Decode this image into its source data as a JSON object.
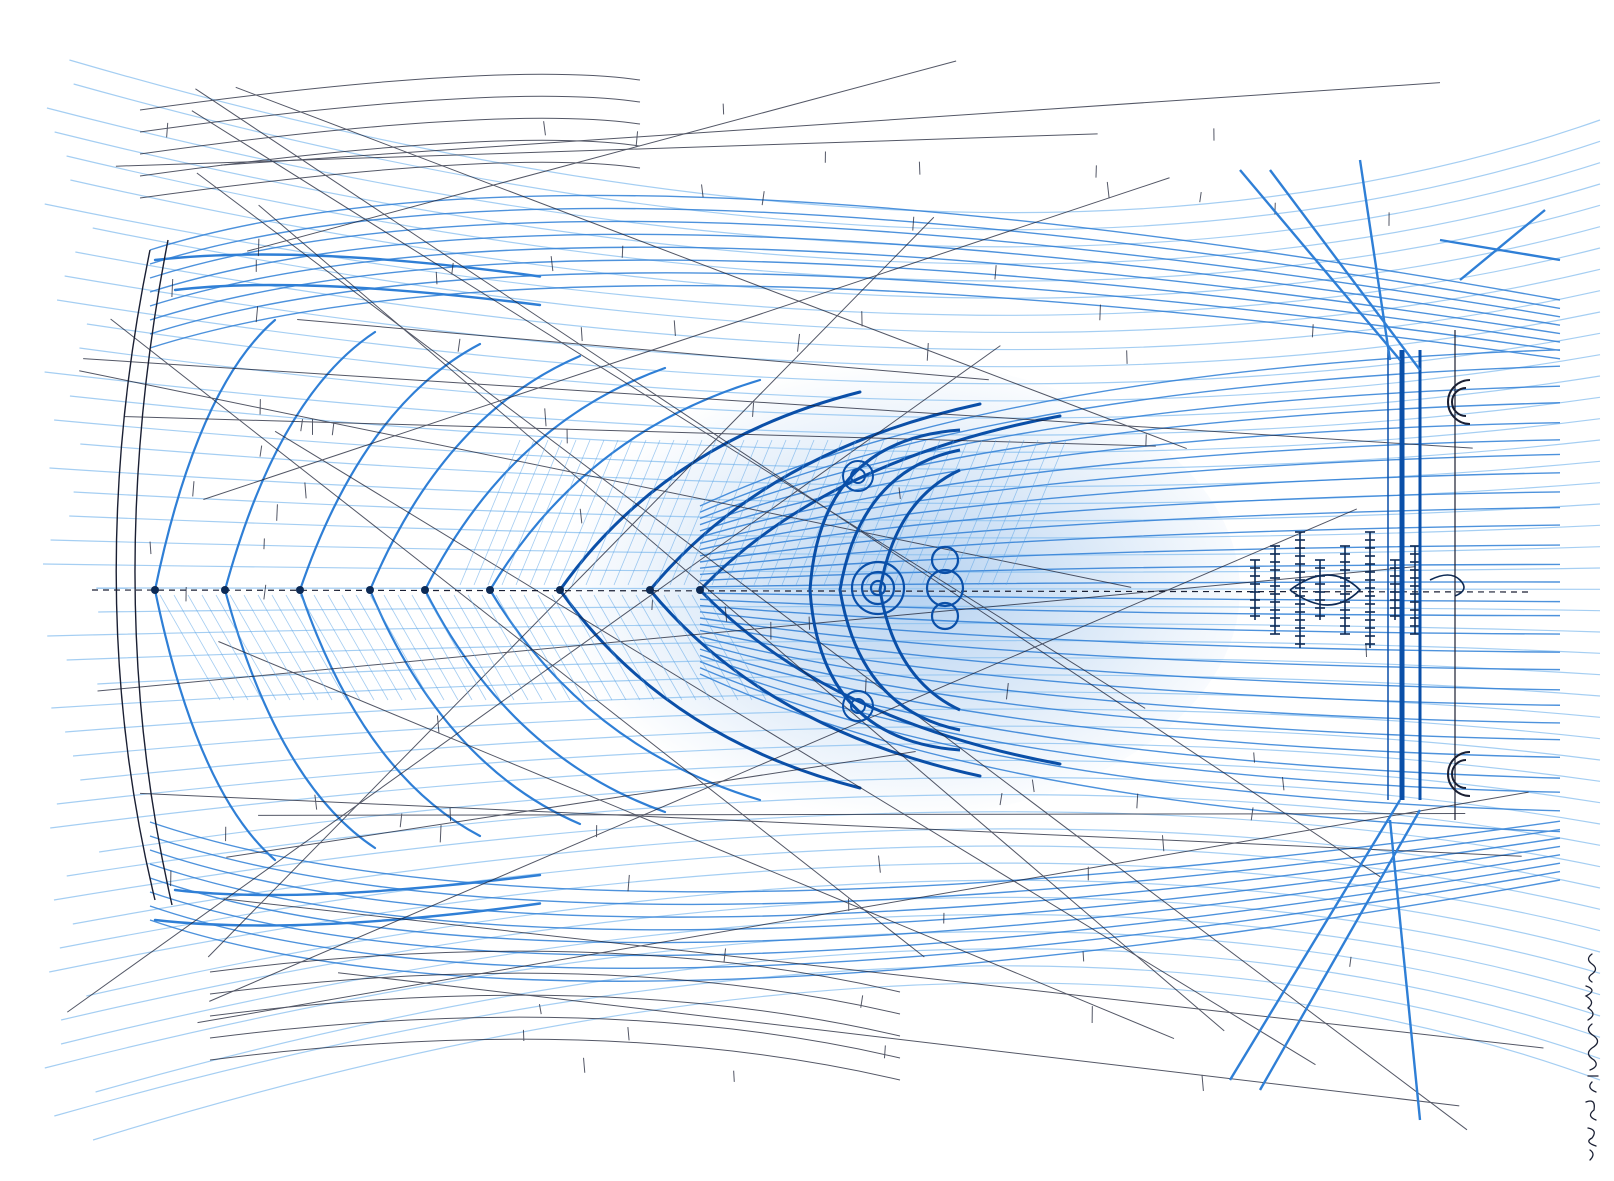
{
  "artwork": {
    "kind": "hand-drawn architectural sketch",
    "subject": "",
    "signature_text": "",
    "palette": {
      "paper": "#ffffff",
      "ink_dark": "#1a1f33",
      "blue_deep": "#0a4fa8",
      "blue_mid": "#2f7fd6",
      "blue_light": "#8fc3f0"
    }
  }
}
